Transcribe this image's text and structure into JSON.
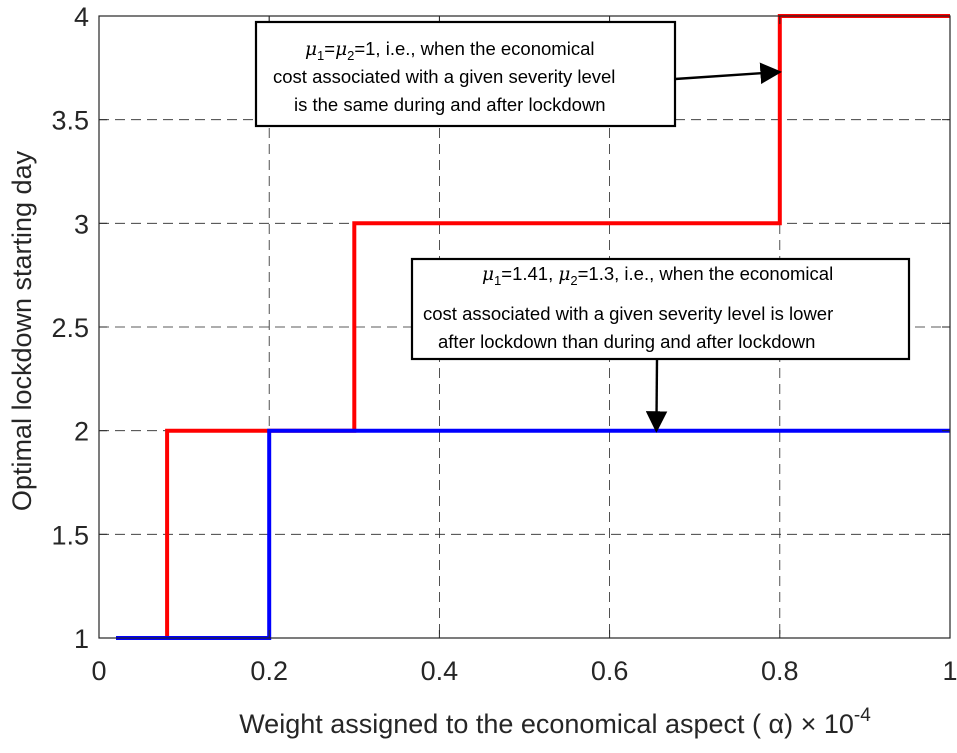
{
  "chart_data": {
    "type": "line",
    "step": true,
    "xlabel": "Weight assigned to the economical aspect ( α) × 10",
    "xlabel_exponent": "-4",
    "ylabel": "Optimal lockdown starting day",
    "xlim": [
      0,
      1
    ],
    "ylim": [
      1,
      4
    ],
    "xticks": [
      0,
      0.2,
      0.4,
      0.6,
      0.8,
      1
    ],
    "xtick_labels": [
      "0",
      "0.2",
      "0.4",
      "0.6",
      "0.8",
      "1"
    ],
    "yticks": [
      1,
      1.5,
      2,
      2.5,
      3,
      3.5,
      4
    ],
    "ytick_labels": [
      "1",
      "1.5",
      "2",
      "2.5",
      "3",
      "3.5",
      "4"
    ],
    "grid": true,
    "series": [
      {
        "color": "#ff0000",
        "x": [
          0.08,
          0.08,
          0.3,
          0.3,
          0.8,
          0.8,
          1.0
        ],
        "y": [
          1,
          2,
          2,
          3,
          3,
          4,
          4
        ]
      },
      {
        "color": "#0000ff",
        "x": [
          0.02,
          0.2,
          0.2,
          1.0
        ],
        "y": [
          1,
          1,
          2,
          2
        ]
      }
    ],
    "annotations": [
      {
        "prefix": {
          "s1": "μ",
          "sub1": "1",
          "eq": "=",
          "s2": "μ",
          "sub2": "2"
        },
        "line1_rest": "=1, i.e., when the economical",
        "line2": "cost associated with a given severity level",
        "line3": "is the same during and after lockdown",
        "arrow_to": {
          "x": 0.8,
          "y": 3.73
        }
      },
      {
        "prefix": {
          "s1": "μ",
          "sub1": "1",
          "mid": "=1.41, ",
          "s2": "μ",
          "sub2": "2"
        },
        "line1_rest": "=1.3, i.e., when the economical",
        "line2": "cost associated with a given severity level is lower",
        "line3": "after lockdown than during and after lockdown",
        "arrow_to": {
          "x": 0.655,
          "y": 2.0
        }
      }
    ]
  }
}
